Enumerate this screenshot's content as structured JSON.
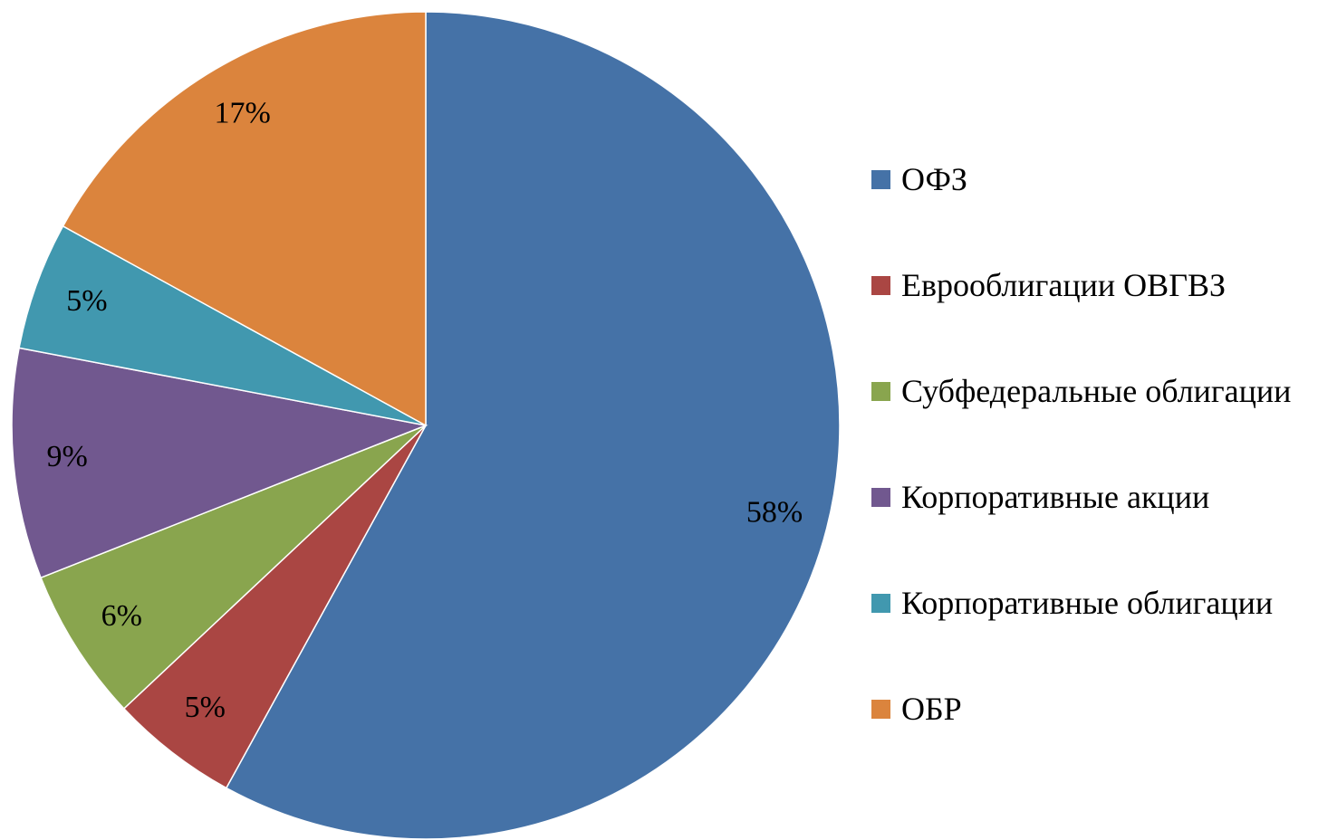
{
  "chart_data": {
    "type": "pie",
    "categories": [
      "ОФЗ",
      "Еврооблигации ОВГВЗ",
      "Субфедеральные облигации",
      "Корпоративные акции",
      "Корпоративные облигации",
      "ОБР"
    ],
    "values": [
      58,
      5,
      6,
      9,
      5,
      17
    ],
    "value_labels": [
      "58%",
      "5%",
      "6%",
      "9%",
      "5%",
      "17%"
    ],
    "colors": [
      "#4572a7",
      "#aa4643",
      "#89a54e",
      "#71588f",
      "#4198af",
      "#db843d"
    ]
  }
}
